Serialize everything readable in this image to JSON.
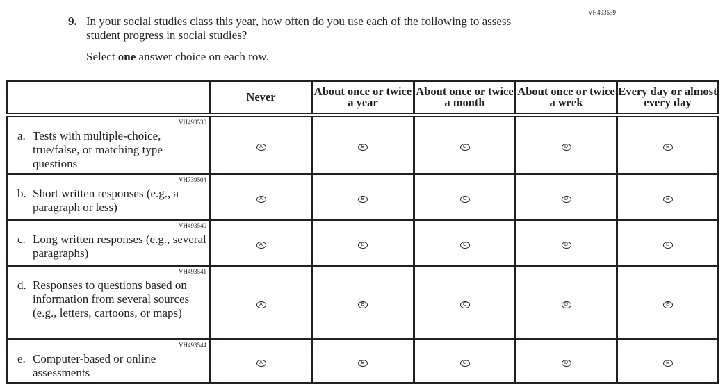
{
  "question": {
    "id": "VH493539",
    "number": "9.",
    "text": "In your social studies class this year, how often do you use each of the following to assess student progress in social studies?",
    "instruction_pre": "Select ",
    "instruction_bold": "one",
    "instruction_post": " answer choice on each row."
  },
  "columns": [
    "Never",
    "About once or twice a year",
    "About once or twice a month",
    "About once or twice a week",
    "Every day or almost every day"
  ],
  "choices": [
    "A",
    "B",
    "C",
    "D",
    "E"
  ],
  "rows": [
    {
      "id": "VH493530",
      "letter": "a.",
      "text": "Tests with multiple-choice, true/false, or matching type questions"
    },
    {
      "id": "VH739504",
      "letter": "b.",
      "text": "Short written responses (e.g., a paragraph or less)"
    },
    {
      "id": "VH493540",
      "letter": "c.",
      "text": "Long written responses (e.g., several paragraphs)"
    },
    {
      "id": "VH493541",
      "letter": "d.",
      "text": "Responses to questions based on information from several sources (e.g., letters, cartoons, or maps)"
    },
    {
      "id": "VH493544",
      "letter": "e.",
      "text": "Computer-based or online assessments"
    }
  ]
}
